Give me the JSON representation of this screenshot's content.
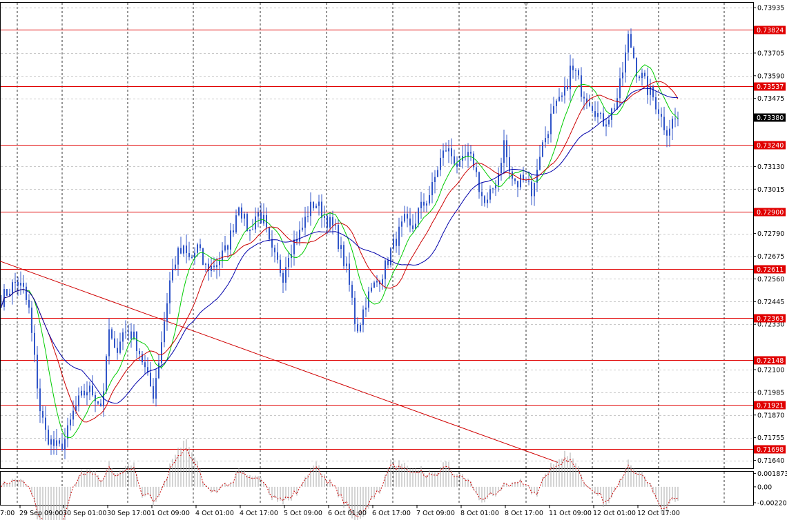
{
  "chart_data": [
    {
      "type": "candlestick",
      "name": "",
      "y_ticks": [
        "0.73935",
        "0.73705",
        "0.73590",
        "0.73475",
        "0.73130",
        "0.73015",
        "0.72790",
        "0.72675",
        "0.72560",
        "0.72445",
        "0.72330",
        "0.72100",
        "0.71985",
        "0.71870",
        "0.71755",
        "0.71640"
      ],
      "ylim": [
        0.716,
        0.7396
      ],
      "x_ticks": [
        "7:00",
        "29 Sep 09:00",
        "30 Sep 01:00",
        "30 Sep 17:00",
        "1 Oct 09:00",
        "4 Oct 01:00",
        "4 Oct 17:00",
        "5 Oct 09:00",
        "6 Oct 01:00",
        "6 Oct 17:00",
        "7 Oct 09:00",
        "8 Oct 01:00",
        "8 Oct 17:00",
        "11 Oct 09:00",
        "12 Oct 01:00",
        "12 Oct 17:00"
      ],
      "current_price": "0.73380",
      "levels": [
        "0.73824",
        "0.73537",
        "0.73240",
        "0.72900",
        "0.72611",
        "0.72363",
        "0.72148",
        "0.71921",
        "0.71698"
      ],
      "trendline": {
        "from": [
          0,
          0.7265
        ],
        "to": [
          808,
          0.7163
        ]
      },
      "candle_step_px": 4,
      "price_path": [
        [
          0,
          0.7245
        ],
        [
          12,
          0.725
        ],
        [
          24,
          0.7255
        ],
        [
          34,
          0.725
        ],
        [
          42,
          0.724
        ],
        [
          50,
          0.7215
        ],
        [
          58,
          0.719
        ],
        [
          66,
          0.7178
        ],
        [
          76,
          0.7172
        ],
        [
          86,
          0.717
        ],
        [
          96,
          0.7176
        ],
        [
          106,
          0.7188
        ],
        [
          116,
          0.7195
        ],
        [
          126,
          0.72
        ],
        [
          136,
          0.7198
        ],
        [
          146,
          0.7192
        ],
        [
          152,
          0.7205
        ],
        [
          158,
          0.723
        ],
        [
          166,
          0.7218
        ],
        [
          176,
          0.7228
        ],
        [
          186,
          0.723
        ],
        [
          196,
          0.7225
        ],
        [
          206,
          0.7215
        ],
        [
          214,
          0.7205
        ],
        [
          222,
          0.7198
        ],
        [
          230,
          0.7215
        ],
        [
          238,
          0.7235
        ],
        [
          246,
          0.7255
        ],
        [
          256,
          0.7268
        ],
        [
          266,
          0.727
        ],
        [
          276,
          0.7265
        ],
        [
          286,
          0.7272
        ],
        [
          296,
          0.7262
        ],
        [
          306,
          0.7262
        ],
        [
          316,
          0.7265
        ],
        [
          326,
          0.727
        ],
        [
          336,
          0.728
        ],
        [
          346,
          0.7295
        ],
        [
          354,
          0.7285
        ],
        [
          362,
          0.728
        ],
        [
          372,
          0.729
        ],
        [
          382,
          0.7285
        ],
        [
          392,
          0.727
        ],
        [
          400,
          0.7265
        ],
        [
          410,
          0.7258
        ],
        [
          418,
          0.727
        ],
        [
          426,
          0.7275
        ],
        [
          436,
          0.728
        ],
        [
          446,
          0.729
        ],
        [
          456,
          0.7295
        ],
        [
          466,
          0.729
        ],
        [
          476,
          0.7285
        ],
        [
          486,
          0.728
        ],
        [
          494,
          0.727
        ],
        [
          502,
          0.726
        ],
        [
          510,
          0.7245
        ],
        [
          516,
          0.723
        ],
        [
          522,
          0.7235
        ],
        [
          530,
          0.7245
        ],
        [
          538,
          0.725
        ],
        [
          546,
          0.7255
        ],
        [
          556,
          0.726
        ],
        [
          566,
          0.727
        ],
        [
          576,
          0.7278
        ],
        [
          586,
          0.7285
        ],
        [
          596,
          0.728
        ],
        [
          606,
          0.729
        ],
        [
          616,
          0.7295
        ],
        [
          626,
          0.7302
        ],
        [
          636,
          0.7315
        ],
        [
          646,
          0.7322
        ],
        [
          656,
          0.7318
        ],
        [
          666,
          0.7312
        ],
        [
          676,
          0.7318
        ],
        [
          686,
          0.7315
        ],
        [
          696,
          0.73
        ],
        [
          704,
          0.7292
        ],
        [
          712,
          0.73
        ],
        [
          722,
          0.731
        ],
        [
          730,
          0.7325
        ],
        [
          738,
          0.731
        ],
        [
          748,
          0.7302
        ],
        [
          758,
          0.731
        ],
        [
          766,
          0.7305
        ],
        [
          772,
          0.7298
        ],
        [
          780,
          0.7318
        ],
        [
          790,
          0.7328
        ],
        [
          800,
          0.734
        ],
        [
          810,
          0.7345
        ],
        [
          818,
          0.735
        ],
        [
          826,
          0.7362
        ],
        [
          834,
          0.736
        ],
        [
          842,
          0.7352
        ],
        [
          852,
          0.7348
        ],
        [
          862,
          0.7342
        ],
        [
          872,
          0.7335
        ],
        [
          880,
          0.7338
        ],
        [
          888,
          0.7342
        ],
        [
          896,
          0.735
        ],
        [
          904,
          0.7365
        ],
        [
          910,
          0.7378
        ],
        [
          916,
          0.7372
        ],
        [
          922,
          0.7362
        ],
        [
          930,
          0.7358
        ],
        [
          938,
          0.7352
        ],
        [
          946,
          0.7348
        ],
        [
          954,
          0.7342
        ],
        [
          960,
          0.7335
        ],
        [
          966,
          0.7332
        ],
        [
          974,
          0.7336
        ],
        [
          984,
          0.7338
        ]
      ],
      "moving_averages": [
        {
          "color": "#00cc00",
          "period": 5
        },
        {
          "color": "#cc0000",
          "period": 9
        },
        {
          "color": "#0000aa",
          "period": 15
        }
      ]
    },
    {
      "type": "bar",
      "name": "",
      "y_ticks": [
        "0.001873",
        "0.00",
        "-0.002207"
      ],
      "ylim": [
        -0.0025,
        0.0021
      ],
      "signal_color": "#cc0000",
      "bar_color": "#a8a8a8"
    }
  ]
}
